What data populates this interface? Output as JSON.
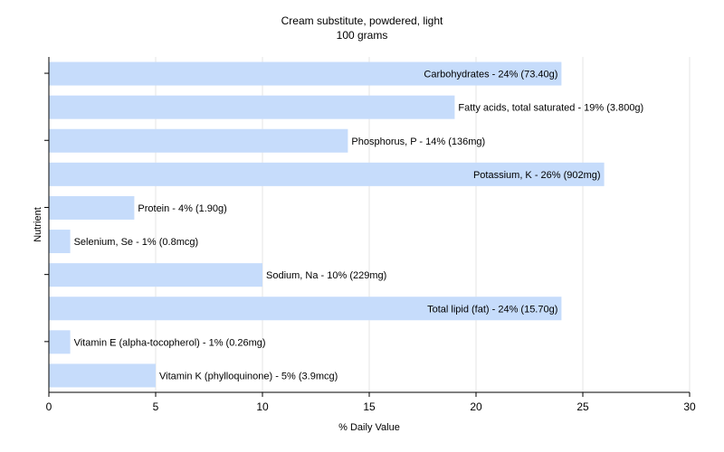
{
  "chart_data": {
    "type": "bar",
    "orientation": "horizontal",
    "title": "Cream substitute, powdered, light",
    "subtitle": "100 grams",
    "xlabel": "% Daily Value",
    "ylabel": "Nutrient",
    "xlim": [
      0,
      30
    ],
    "xticks": [
      0,
      5,
      10,
      15,
      20,
      25,
      30
    ],
    "grid": true,
    "bar_color": "#c6dcfb",
    "grid_color": "#e6e6e6",
    "categories": [
      "Carbohydrates",
      "Fatty acids, total saturated",
      "Phosphorus, P",
      "Potassium, K",
      "Protein",
      "Selenium, Se",
      "Sodium, Na",
      "Total lipid (fat)",
      "Vitamin E (alpha-tocopherol)",
      "Vitamin K (phylloquinone)"
    ],
    "values": [
      24,
      19,
      14,
      26,
      4,
      1,
      10,
      24,
      1,
      5
    ],
    "labels": [
      "Carbohydrates - 24% (73.40g)",
      "Fatty acids, total saturated - 19% (3.800g)",
      "Phosphorus, P - 14% (136mg)",
      "Potassium, K - 26% (902mg)",
      "Protein - 4% (1.90g)",
      "Selenium, Se - 1% (0.8mcg)",
      "Sodium, Na - 10% (229mg)",
      "Total lipid (fat) - 24% (15.70g)",
      "Vitamin E (alpha-tocopherol) - 1% (0.26mg)",
      "Vitamin K (phylloquinone) - 5% (3.9mcg)"
    ],
    "label_inside": [
      true,
      false,
      false,
      true,
      false,
      false,
      false,
      true,
      false,
      false
    ]
  }
}
